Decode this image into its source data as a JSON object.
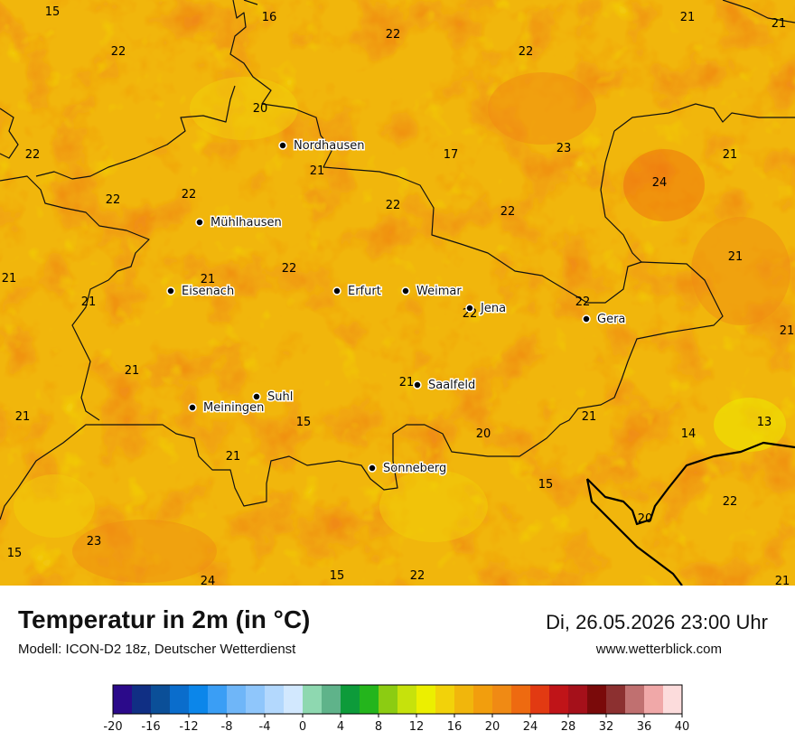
{
  "title": "Temperatur in 2m (in °C)",
  "model": "Modell: ICON-D2 18z, Deutscher Wetterdienst",
  "datetime": "Di, 26.05.2026 23:00 Uhr",
  "website": "www.wetterblick.com",
  "colors": {
    "base": "#f1b60c",
    "orange": "#f08a14",
    "yellow": "#f2d20a",
    "yellow_green": "#ecef00",
    "boundary": "#111111"
  },
  "cities": [
    {
      "name": "Nordhausen"
    },
    {
      "name": "Mühlhausen"
    },
    {
      "name": "Eisenach"
    },
    {
      "name": "Erfurt"
    },
    {
      "name": "Weimar"
    },
    {
      "name": "Jena"
    },
    {
      "name": "Gera"
    },
    {
      "name": "Suhl"
    },
    {
      "name": "Meiningen"
    },
    {
      "name": "Saalfeld"
    },
    {
      "name": "Sonneberg"
    }
  ],
  "temperature_labels": [
    "15",
    "16",
    "21",
    "21",
    "22",
    "22",
    "22",
    "20",
    "22",
    "23",
    "17",
    "21",
    "21",
    "22",
    "22",
    "22",
    "22",
    "24",
    "21",
    "21",
    "22",
    "21",
    "21",
    "22",
    "22",
    "21",
    "21",
    "21",
    "21",
    "15",
    "13",
    "20",
    "14",
    "21",
    "21",
    "23",
    "22",
    "15",
    "20",
    "15",
    "24",
    "22",
    "15",
    "21"
  ],
  "legend": {
    "ticks": [
      "-20",
      "-16",
      "-12",
      "-8",
      "-4",
      "0",
      "4",
      "8",
      "12",
      "16",
      "20",
      "24",
      "28",
      "32",
      "36",
      "40"
    ],
    "colors": [
      "#2b0a8a",
      "#102f84",
      "#0b4f98",
      "#0a6dcc",
      "#0b86ea",
      "#3a9ef5",
      "#6fb6f8",
      "#8fc6fb",
      "#b3d8fd",
      "#d2e8fe",
      "#8ed8b0",
      "#5fb38a",
      "#0d9b3a",
      "#24b51c",
      "#8ccc12",
      "#c6e20c",
      "#ecef00",
      "#f2d20a",
      "#f1b60c",
      "#f29e0d",
      "#f08a14",
      "#ee6a10",
      "#e23a12",
      "#c01418",
      "#a5101a",
      "#7a0a0a",
      "#8c3030",
      "#c07070",
      "#f0a8a8",
      "#fcdcdc"
    ]
  }
}
